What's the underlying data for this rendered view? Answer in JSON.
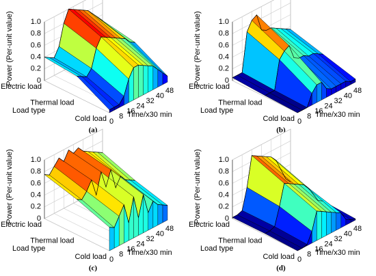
{
  "chart_data": [
    {
      "type": "surface3d",
      "title": "(a)",
      "zlabel": "Power (Per-unit value)",
      "xlabel": "Time/x30 min",
      "ylabel": "Load type",
      "categories": [
        "Electric load",
        "Thermal load",
        "Cold load"
      ],
      "x": [
        0,
        4,
        8,
        12,
        16,
        20,
        24,
        28,
        32,
        36,
        40,
        44,
        48
      ],
      "xlim": [
        0,
        48
      ],
      "xticks": [
        0,
        8,
        16,
        24,
        32,
        40,
        48
      ],
      "zlim": [
        0,
        1
      ],
      "zticks": [
        0,
        0.2,
        0.4,
        0.6,
        0.8,
        {
          "value": 1,
          "label": "1.0"
        }
      ],
      "grid": true,
      "colormap": "jet",
      "series": [
        {
          "values": [
            0.4,
            0.35,
            0.3,
            0.45,
            0.8,
            1.0,
            0.95,
            0.9,
            0.85,
            0.8,
            0.7,
            0.6,
            0.5
          ]
        },
        {
          "values": [
            0.35,
            0.3,
            0.25,
            0.35,
            0.65,
            0.8,
            0.75,
            0.7,
            0.65,
            0.6,
            0.55,
            0.45,
            0.4
          ]
        },
        {
          "values": [
            0.05,
            0.05,
            0.05,
            0.15,
            0.4,
            0.55,
            0.55,
            0.5,
            0.45,
            0.4,
            0.3,
            0.2,
            0.1
          ]
        }
      ]
    },
    {
      "type": "surface3d",
      "title": "(b)",
      "zlabel": "Power (Per-unit value)",
      "xlabel": "Time/x30 min",
      "ylabel": "Load type",
      "categories": [
        "Electric load",
        "Thermal load",
        "Cold load"
      ],
      "x": [
        0,
        4,
        8,
        12,
        16,
        20,
        24,
        28,
        32,
        36,
        40,
        44,
        48
      ],
      "xlim": [
        0,
        48
      ],
      "xticks": [
        0,
        8,
        16,
        24,
        32,
        40,
        48
      ],
      "zlim": [
        0,
        1
      ],
      "zticks": [
        0,
        0.2,
        0.4,
        0.6,
        0.8,
        {
          "value": 1,
          "label": "1.0"
        }
      ],
      "grid": true,
      "colormap": "jet",
      "series": [
        {
          "values": [
            0.05,
            0.05,
            0.05,
            0.7,
            0.85,
            0.9,
            0.6,
            0.55,
            0.55,
            0.5,
            0.45,
            0.4,
            0.35
          ]
        },
        {
          "values": [
            0.02,
            0.02,
            0.02,
            0.5,
            0.6,
            0.65,
            0.4,
            0.35,
            0.35,
            0.3,
            0.3,
            0.25,
            0.2
          ]
        },
        {
          "values": [
            0,
            0,
            0,
            0.2,
            0.3,
            0.3,
            0.15,
            0.1,
            0.1,
            0.1,
            0.1,
            0.05,
            0.05
          ]
        }
      ]
    },
    {
      "type": "surface3d",
      "title": "(c)",
      "zlabel": "Power (Per-unit value)",
      "xlabel": "Time/x30 min",
      "ylabel": "Load type",
      "categories": [
        "Electric load",
        "Thermal load",
        "Cold load"
      ],
      "x": [
        0,
        4,
        8,
        12,
        16,
        20,
        24,
        28,
        32,
        36,
        40,
        44,
        48
      ],
      "xlim": [
        0,
        48
      ],
      "xticks": [
        0,
        8,
        16,
        24,
        32,
        40,
        48
      ],
      "zlim": [
        0,
        1
      ],
      "zticks": [
        0,
        0.2,
        0.4,
        0.6,
        0.8,
        {
          "value": 1,
          "label": "1.0"
        }
      ],
      "grid": true,
      "colormap": "jet",
      "series": [
        {
          "values": [
            0.75,
            0.7,
            0.8,
            0.9,
            0.8,
            0.95,
            0.85,
            0.9,
            0.8,
            0.75,
            0.7,
            0.65,
            0.6
          ]
        },
        {
          "values": [
            0.6,
            0.55,
            0.65,
            0.8,
            0.5,
            0.85,
            0.55,
            0.8,
            0.45,
            0.6,
            0.5,
            0.45,
            0.4
          ]
        },
        {
          "values": [
            0.4,
            0.35,
            0.5,
            0.65,
            0.3,
            0.7,
            0.3,
            0.65,
            0.3,
            0.45,
            0.35,
            0.3,
            0.25
          ]
        }
      ]
    },
    {
      "type": "surface3d",
      "title": "(d)",
      "zlabel": "Power (Per-unit value)",
      "xlabel": "Time/x30 min",
      "ylabel": "Load type",
      "categories": [
        "Electric load",
        "Thermal load",
        "Cold load"
      ],
      "x": [
        0,
        4,
        8,
        12,
        16,
        20,
        24,
        28,
        32,
        36,
        40,
        44,
        48
      ],
      "xlim": [
        0,
        48
      ],
      "xticks": [
        0,
        8,
        16,
        24,
        32,
        40,
        48
      ],
      "zlim": [
        0,
        1
      ],
      "zticks": [
        0,
        0.2,
        0.4,
        0.6,
        0.8,
        {
          "value": 1,
          "label": "1.0"
        }
      ],
      "grid": true,
      "colormap": "jet",
      "series": [
        {
          "values": [
            0.02,
            0.02,
            0.05,
            0.4,
            0.9,
            0.85,
            0.8,
            0.75,
            0.7,
            0.6,
            0.4,
            0.2,
            0.1
          ]
        },
        {
          "values": [
            0.02,
            0.02,
            0.05,
            0.35,
            0.7,
            0.65,
            0.6,
            0.55,
            0.5,
            0.4,
            0.25,
            0.1,
            0.05
          ]
        },
        {
          "values": [
            0,
            0,
            0.02,
            0.2,
            0.5,
            0.45,
            0.4,
            0.35,
            0.3,
            0.25,
            0.1,
            0.05,
            0.02
          ]
        }
      ]
    }
  ]
}
